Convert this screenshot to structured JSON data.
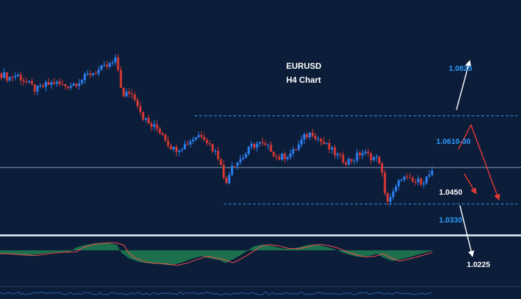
{
  "chart_data": {
    "type": "candlestick",
    "title": "EURUSD",
    "subtitle": "H4 Chart",
    "symbol": "EURUSD",
    "timeframe": "H4",
    "price_range": [
      1.02,
      1.091
    ],
    "bull_color": "#2e86ff",
    "bear_color": "#e53935",
    "levels": [
      {
        "label": "1.0825",
        "price": 1.0825,
        "color": "#2e9bff",
        "style": "text"
      },
      {
        "label": "1.0610-30",
        "price": 1.062,
        "color": "#2e9bff",
        "style": "dashed"
      },
      {
        "label": "1.0450",
        "price": 1.045,
        "color": "#ffffff",
        "style": "solid"
      },
      {
        "label": "1.0330",
        "price": 1.033,
        "color": "#2e9bff",
        "style": "dashed"
      },
      {
        "label": "1.0225",
        "price": 1.0225,
        "color": "#ffffff",
        "style": "text"
      }
    ],
    "path_price": [
      [
        0,
        1.076
      ],
      [
        12,
        1.0745
      ],
      [
        25,
        1.0755
      ],
      [
        38,
        1.073
      ],
      [
        52,
        1.0705
      ],
      [
        65,
        1.072
      ],
      [
        78,
        1.073
      ],
      [
        92,
        1.0718
      ],
      [
        105,
        1.0725
      ],
      [
        118,
        1.074
      ],
      [
        130,
        1.076
      ],
      [
        142,
        1.077
      ],
      [
        152,
        1.078
      ],
      [
        160,
        1.079
      ],
      [
        168,
        1.0805
      ],
      [
        172,
        1.074
      ],
      [
        178,
        1.068
      ],
      [
        185,
        1.07
      ],
      [
        195,
        1.068
      ],
      [
        205,
        1.062
      ],
      [
        215,
        1.059
      ],
      [
        225,
        1.058
      ],
      [
        235,
        1.056
      ],
      [
        242,
        1.053
      ],
      [
        250,
        1.051
      ],
      [
        262,
        1.052
      ],
      [
        272,
        1.0535
      ],
      [
        283,
        1.0555
      ],
      [
        292,
        1.056
      ],
      [
        300,
        1.053
      ],
      [
        310,
        1.05
      ],
      [
        318,
        1.047
      ],
      [
        324,
        1.038
      ],
      [
        328,
        1.042
      ],
      [
        333,
        1.046
      ],
      [
        342,
        1.047
      ],
      [
        352,
        1.049
      ],
      [
        362,
        1.052
      ],
      [
        372,
        1.053
      ],
      [
        380,
        1.052
      ],
      [
        390,
        1.051
      ],
      [
        400,
        1.048
      ],
      [
        412,
        1.049
      ],
      [
        422,
        1.05
      ],
      [
        432,
        1.053
      ],
      [
        440,
        1.0555
      ],
      [
        450,
        1.0565
      ],
      [
        460,
        1.054
      ],
      [
        470,
        1.052
      ],
      [
        480,
        1.05
      ],
      [
        490,
        1.048
      ],
      [
        500,
        1.047
      ],
      [
        510,
        1.048
      ],
      [
        520,
        1.05
      ],
      [
        530,
        1.049
      ],
      [
        540,
        1.048
      ],
      [
        548,
        1.047
      ],
      [
        553,
        1.036
      ],
      [
        558,
        1.0345
      ],
      [
        565,
        1.036
      ],
      [
        572,
        1.039
      ],
      [
        578,
        1.042
      ],
      [
        585,
        1.041
      ],
      [
        595,
        1.04
      ],
      [
        605,
        1.0405
      ],
      [
        612,
        1.041
      ],
      [
        620,
        1.043
      ]
    ],
    "oscillator": {
      "bar_color": "#2fc463",
      "signal_color": "#ff4d4d",
      "values": [
        [
          0,
          -0.35
        ],
        [
          20,
          -0.45
        ],
        [
          40,
          -0.55
        ],
        [
          60,
          -0.35
        ],
        [
          80,
          -0.2
        ],
        [
          100,
          -0.15
        ],
        [
          110,
          0.3
        ],
        [
          125,
          0.6
        ],
        [
          140,
          0.75
        ],
        [
          155,
          0.8
        ],
        [
          168,
          0.55
        ],
        [
          175,
          -0.25
        ],
        [
          185,
          -0.8
        ],
        [
          200,
          -1.2
        ],
        [
          215,
          -1.35
        ],
        [
          230,
          -1.4
        ],
        [
          245,
          -1.55
        ],
        [
          260,
          -1.3
        ],
        [
          275,
          -0.9
        ],
        [
          290,
          -0.6
        ],
        [
          300,
          -0.8
        ],
        [
          315,
          -1.0
        ],
        [
          325,
          -1.3
        ],
        [
          335,
          -0.95
        ],
        [
          345,
          -0.55
        ],
        [
          355,
          -0.1
        ],
        [
          365,
          0.4
        ],
        [
          378,
          0.6
        ],
        [
          392,
          0.45
        ],
        [
          405,
          0.2
        ],
        [
          418,
          0.15
        ],
        [
          430,
          0.3
        ],
        [
          442,
          0.55
        ],
        [
          455,
          0.6
        ],
        [
          468,
          0.4
        ],
        [
          480,
          0.15
        ],
        [
          492,
          -0.2
        ],
        [
          505,
          -0.5
        ],
        [
          518,
          -0.7
        ],
        [
          530,
          -0.6
        ],
        [
          542,
          -0.35
        ],
        [
          552,
          -0.75
        ],
        [
          565,
          -1.1
        ],
        [
          578,
          -0.9
        ],
        [
          592,
          -0.65
        ],
        [
          606,
          -0.35
        ],
        [
          620,
          -0.1
        ]
      ]
    },
    "projection_color": "#e53935",
    "projection_up_color": "#ffffff"
  }
}
